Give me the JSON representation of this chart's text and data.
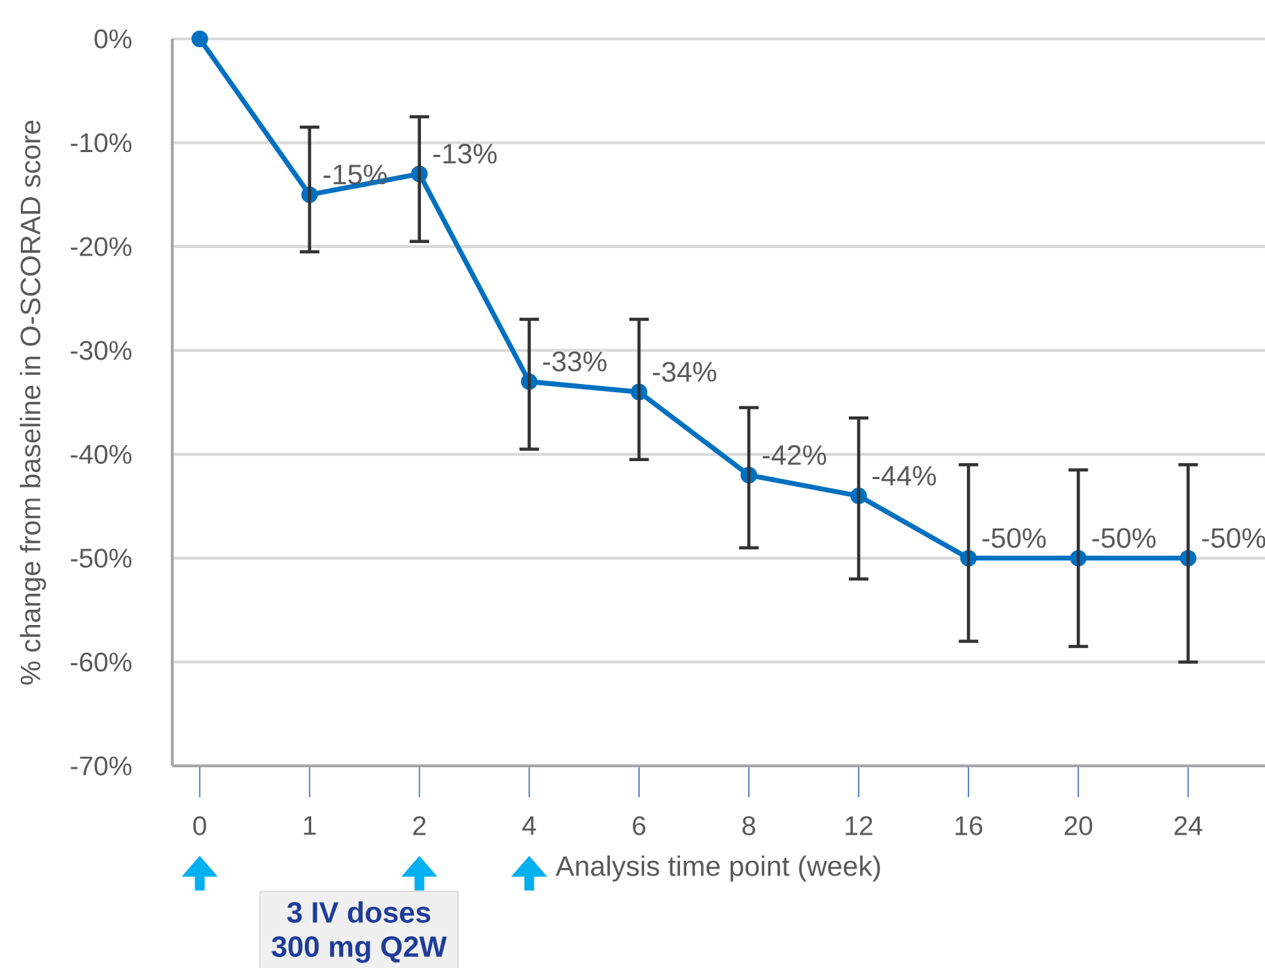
{
  "chart_data": {
    "type": "line",
    "xlabel": "Analysis time point (week)",
    "ylabel": "% change from baseline in O-SCORAD  score",
    "categories": [
      "0",
      "1",
      "2",
      "4",
      "6",
      "8",
      "12",
      "16",
      "20",
      "24"
    ],
    "values": [
      0,
      -15,
      -13,
      -33,
      -34,
      -42,
      -44,
      -50,
      -50,
      -50
    ],
    "value_labels": [
      null,
      "-15%",
      "-13%",
      "-33%",
      "-34%",
      "-42%",
      "-44%",
      "-50%",
      "-50%",
      "-50%"
    ],
    "errors": [
      null,
      [
        -20.5,
        -8.5
      ],
      [
        -19.5,
        -7.5
      ],
      [
        -39.5,
        -27
      ],
      [
        -40.5,
        -27
      ],
      [
        -49,
        -35.5
      ],
      [
        -52,
        -36.5
      ],
      [
        -58,
        -41
      ],
      [
        -58.5,
        -41.5
      ],
      [
        -60,
        -41
      ]
    ],
    "color": "#0070c0",
    "marker": "circle",
    "grid": "y",
    "ylim": [
      -70,
      0
    ],
    "yticks": [
      {
        "value": 0,
        "label": "0%"
      },
      {
        "value": -10,
        "label": "-10%"
      },
      {
        "value": -20,
        "label": "-20%"
      },
      {
        "value": -30,
        "label": "-30%"
      },
      {
        "value": -40,
        "label": "-40%"
      },
      {
        "value": -50,
        "label": "-50%"
      },
      {
        "value": -60,
        "label": "-60%"
      },
      {
        "value": -70,
        "label": "-70%"
      }
    ],
    "annotations": [
      "3 IV doses",
      "300 mg Q2W"
    ]
  }
}
